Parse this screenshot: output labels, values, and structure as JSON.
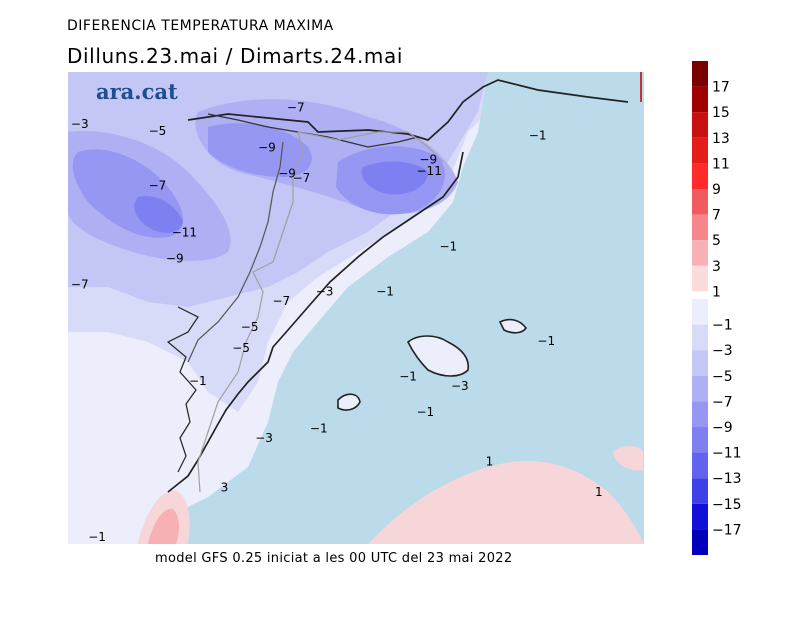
{
  "header": {
    "title": "DIFERENCIA TEMPERATURA MAXIMA",
    "subtitle": "Dilluns.23.mai  /  Dimarts.24.mai"
  },
  "brand": "ara.cat",
  "footer": "model GFS 0.25 iniciat a les 00 UTC del 23 mai 2022",
  "contour_labels": [
    {
      "text": "-3",
      "lx": 0.005,
      "ly": 0.11
    },
    {
      "text": "-5",
      "lx": 0.14,
      "ly": 0.125
    },
    {
      "text": "-7",
      "lx": 0.38,
      "ly": 0.075
    },
    {
      "text": "-9",
      "lx": 0.33,
      "ly": 0.16
    },
    {
      "text": "-9",
      "lx": 0.365,
      "ly": 0.215
    },
    {
      "text": "-7",
      "lx": 0.39,
      "ly": 0.225
    },
    {
      "text": "-7",
      "lx": 0.14,
      "ly": 0.24
    },
    {
      "text": "-11",
      "lx": 0.18,
      "ly": 0.34
    },
    {
      "text": "-9",
      "lx": 0.17,
      "ly": 0.395
    },
    {
      "text": "-7",
      "lx": 0.005,
      "ly": 0.45
    },
    {
      "text": "-9",
      "lx": 0.61,
      "ly": 0.185
    },
    {
      "text": "-11",
      "lx": 0.605,
      "ly": 0.21
    },
    {
      "text": "-1",
      "lx": 0.8,
      "ly": 0.135
    },
    {
      "text": "-1",
      "lx": 0.645,
      "ly": 0.37
    },
    {
      "text": "-7",
      "lx": 0.355,
      "ly": 0.485
    },
    {
      "text": "-3",
      "lx": 0.43,
      "ly": 0.465
    },
    {
      "text": "-1",
      "lx": 0.535,
      "ly": 0.465
    },
    {
      "text": "-5",
      "lx": 0.3,
      "ly": 0.54
    },
    {
      "text": "-5",
      "lx": 0.285,
      "ly": 0.585
    },
    {
      "text": "-1",
      "lx": 0.815,
      "ly": 0.57
    },
    {
      "text": "-1",
      "lx": 0.575,
      "ly": 0.645
    },
    {
      "text": "-3",
      "lx": 0.665,
      "ly": 0.665
    },
    {
      "text": "-1",
      "lx": 0.605,
      "ly": 0.72
    },
    {
      "text": "-1",
      "lx": 0.42,
      "ly": 0.755
    },
    {
      "text": "-3",
      "lx": 0.325,
      "ly": 0.775
    },
    {
      "text": "-1",
      "lx": 0.21,
      "ly": 0.655
    },
    {
      "text": "1",
      "lx": 0.725,
      "ly": 0.825
    },
    {
      "text": "1",
      "lx": 0.915,
      "ly": 0.89
    },
    {
      "text": "3",
      "lx": 0.265,
      "ly": 0.88
    },
    {
      "text": "-1",
      "lx": 0.035,
      "ly": 0.985
    }
  ],
  "legend": {
    "positive": [
      {
        "label": "17",
        "color": "#7a0000"
      },
      {
        "label": "15",
        "color": "#a00000"
      },
      {
        "label": "13",
        "color": "#c81010"
      },
      {
        "label": "11",
        "color": "#e41c1c"
      },
      {
        "label": "9",
        "color": "#ff2a2a"
      },
      {
        "label": "7",
        "color": "#f25a62"
      },
      {
        "label": "5",
        "color": "#f7868c"
      },
      {
        "label": "3",
        "color": "#f7b0b4"
      },
      {
        "label": "1",
        "color": "#fbdcdc"
      }
    ],
    "negative": [
      {
        "label": "-1",
        "color": "#eceefb"
      },
      {
        "label": "-3",
        "color": "#d8dbf8"
      },
      {
        "label": "-5",
        "color": "#c4c6f5"
      },
      {
        "label": "-7",
        "color": "#aeb0f3"
      },
      {
        "label": "-9",
        "color": "#9597f2"
      },
      {
        "label": "-11",
        "color": "#7e80f2"
      },
      {
        "label": "-13",
        "color": "#6163f0"
      },
      {
        "label": "-15",
        "color": "#3f41e8"
      },
      {
        "label": "-17",
        "color": "#1010d8"
      },
      {
        "label": "",
        "color": "#0000b8"
      }
    ]
  }
}
